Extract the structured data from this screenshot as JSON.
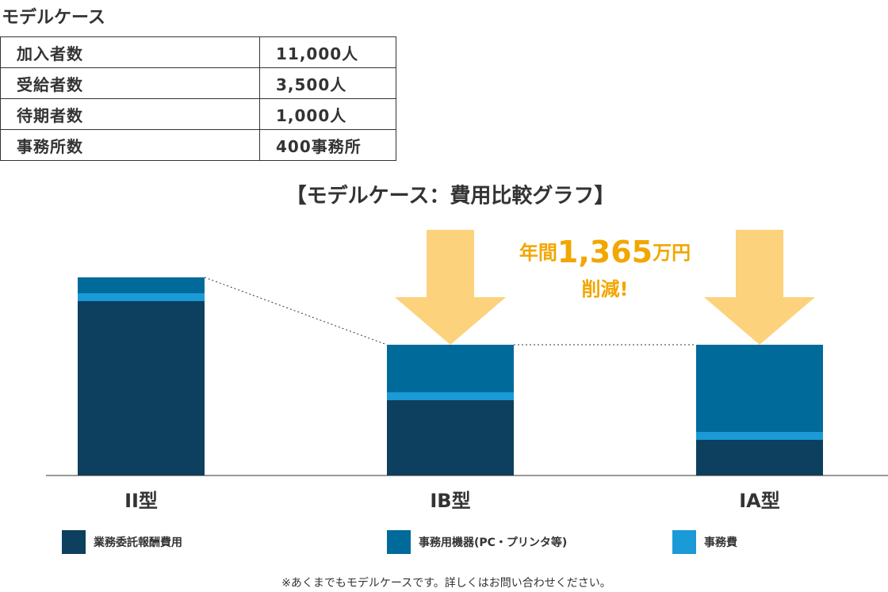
{
  "heading": "モデルケース",
  "table": {
    "rows": [
      [
        "加入者数",
        "11,000人"
      ],
      [
        "受給者数",
        "3,500人"
      ],
      [
        "待期者数",
        "1,000人"
      ],
      [
        "事務所数",
        "400事務所"
      ]
    ]
  },
  "chart_data": {
    "type": "stacked-bar",
    "title": "【モデルケース：費用比較グラフ】",
    "categories": [
      "II型",
      "IB型",
      "IA型"
    ],
    "series": [
      {
        "name": "業務委託報酬費用",
        "color": "#0d3f5e",
        "values": [
          220,
          95,
          45
        ]
      },
      {
        "name": "事務用機器(PC・プリンタ等)",
        "color": "#006a9a",
        "values": [
          20,
          60,
          110
        ]
      },
      {
        "name": "事務費",
        "color": "#1a9ad6",
        "values": [
          10,
          10,
          10
        ]
      }
    ],
    "ylim": [
      0,
      265
    ],
    "annotation": {
      "prefix": "年間",
      "amount": "1,365",
      "suffix": "万円",
      "line2": "削減!"
    },
    "footnote": "※あくまでもモデルケースです。詳しくはお問い合わせください。"
  }
}
